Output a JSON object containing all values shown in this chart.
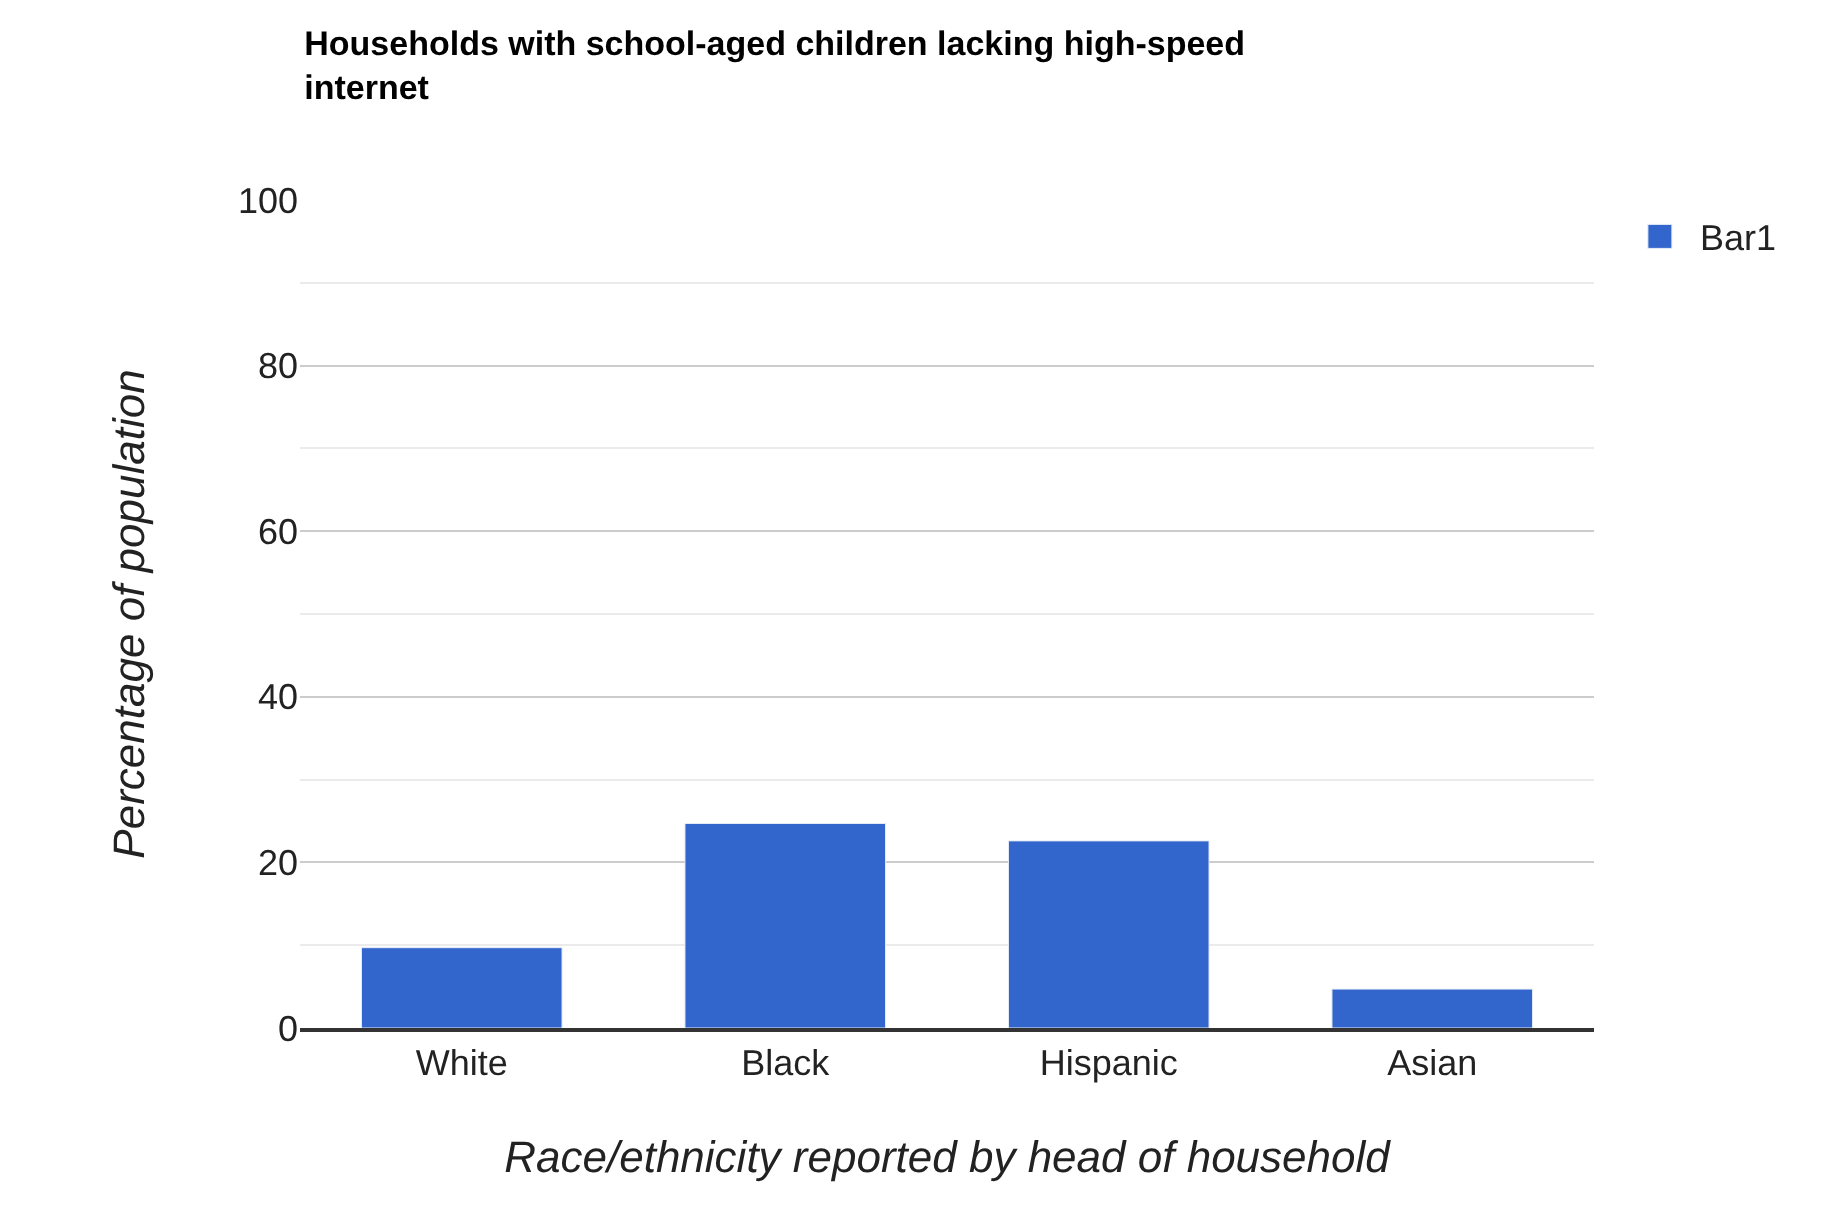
{
  "chart_data": {
    "type": "bar",
    "title": "Households with school-aged children lacking high-speed\ninternet",
    "xlabel": "Race/ethnicity reported by head of household",
    "ylabel": "Percentage of population",
    "categories": [
      "White",
      "Black",
      "Hispanic",
      "Asian"
    ],
    "series": [
      {
        "name": "Bar1",
        "color": "#3366cc",
        "values": [
          9.7,
          24.7,
          22.6,
          4.7
        ]
      }
    ],
    "ylim": [
      0,
      100
    ],
    "yticks": [
      0,
      {
        "value": 10,
        "label": null
      },
      20,
      {
        "value": 30,
        "label": null
      },
      40,
      {
        "value": 50,
        "label": null
      },
      60,
      {
        "value": 70,
        "label": null
      },
      80,
      {
        "value": 90,
        "label": null
      },
      100
    ],
    "grid": "y",
    "legend": "top right"
  }
}
